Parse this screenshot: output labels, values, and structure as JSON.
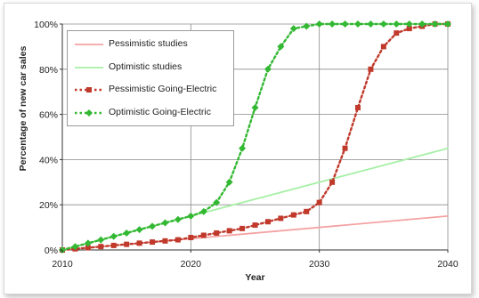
{
  "chart_data": {
    "type": "line",
    "title": "",
    "xlabel": "Year",
    "ylabel": "Percentage of new car sales",
    "xlim": [
      2010,
      2040
    ],
    "ylim": [
      0,
      100
    ],
    "x_ticks": [
      "2010",
      "2020",
      "2030",
      "2040"
    ],
    "y_ticks": [
      "0%",
      "20%",
      "40%",
      "60%",
      "80%",
      "100%"
    ],
    "grid": true,
    "legend_position": "top-left",
    "series": [
      {
        "name": "Pessimistic studies",
        "style": "solid-line",
        "color": "#f4a3a3",
        "x": [
          2010,
          2040
        ],
        "y": [
          0,
          15
        ]
      },
      {
        "name": "Optimistic studies",
        "style": "solid-line",
        "color": "#a6f0a6",
        "x": [
          2010,
          2040
        ],
        "y": [
          0,
          45
        ]
      },
      {
        "name": "Pessimistic Going-Electric",
        "style": "dotted-line-square-markers",
        "color": "#c0392b",
        "x": [
          2010,
          2011,
          2012,
          2013,
          2014,
          2015,
          2016,
          2017,
          2018,
          2019,
          2020,
          2021,
          2022,
          2023,
          2024,
          2025,
          2026,
          2027,
          2028,
          2029,
          2030,
          2031,
          2032,
          2033,
          2034,
          2035,
          2036,
          2037,
          2038,
          2039,
          2040
        ],
        "y": [
          0,
          0.5,
          1,
          1.5,
          2,
          2.5,
          3,
          3.5,
          4,
          4.5,
          5.5,
          6.5,
          7.5,
          8.5,
          9.5,
          11,
          12.5,
          14,
          15.5,
          17,
          21,
          30,
          45,
          63,
          80,
          90,
          96,
          98,
          99,
          100,
          100
        ]
      },
      {
        "name": "Optimistic Going-Electric",
        "style": "dotted-line-diamond-markers",
        "color": "#33b833",
        "x": [
          2010,
          2011,
          2012,
          2013,
          2014,
          2015,
          2016,
          2017,
          2018,
          2019,
          2020,
          2021,
          2022,
          2023,
          2024,
          2025,
          2026,
          2027,
          2028,
          2029,
          2030,
          2031,
          2032,
          2033,
          2034,
          2035,
          2036,
          2037,
          2038,
          2039,
          2040
        ],
        "y": [
          0,
          1.5,
          3,
          4.5,
          6,
          7.5,
          9,
          10.5,
          12,
          13.5,
          15,
          17,
          21,
          30,
          45,
          63,
          80,
          90,
          98,
          99,
          100,
          100,
          100,
          100,
          100,
          100,
          100,
          100,
          100,
          100,
          100
        ]
      }
    ]
  }
}
